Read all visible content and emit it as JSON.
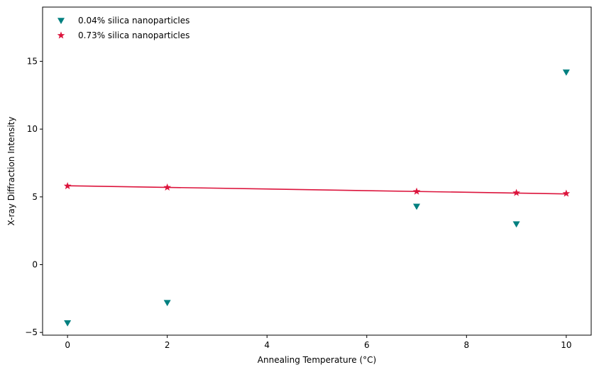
{
  "chart_data": {
    "type": "scatter",
    "title": "",
    "xlabel": "Annealing Temperature (°C)",
    "ylabel": "X-ray Diffraction Intensity",
    "xlim": [
      -0.5,
      10.5
    ],
    "ylim": [
      -5.2,
      19.0
    ],
    "xticks": [
      0,
      2,
      4,
      6,
      8,
      10
    ],
    "xtick_labels": [
      "0",
      "2",
      "4",
      "6",
      "8",
      "10"
    ],
    "yticks": [
      -5,
      0,
      5,
      10,
      15
    ],
    "ytick_labels": [
      "−5",
      "0",
      "5",
      "10",
      "15"
    ],
    "grid": false,
    "legend_position": "top-left",
    "series": [
      {
        "name": "0.04% silica nanoparticles",
        "marker": "triangle-down",
        "color": "#008080",
        "x": [
          0,
          2,
          7,
          9,
          10
        ],
        "y": [
          -4.3,
          -2.8,
          4.3,
          3.0,
          14.2
        ]
      },
      {
        "name": "0.73% silica nanoparticles",
        "marker": "star",
        "color": "#dc143c",
        "x": [
          0,
          2,
          7,
          9,
          10
        ],
        "y": [
          5.8,
          5.7,
          5.4,
          5.3,
          5.25
        ],
        "fit_line": {
          "x": [
            0,
            10
          ],
          "y": [
            5.82,
            5.22
          ]
        }
      }
    ]
  }
}
